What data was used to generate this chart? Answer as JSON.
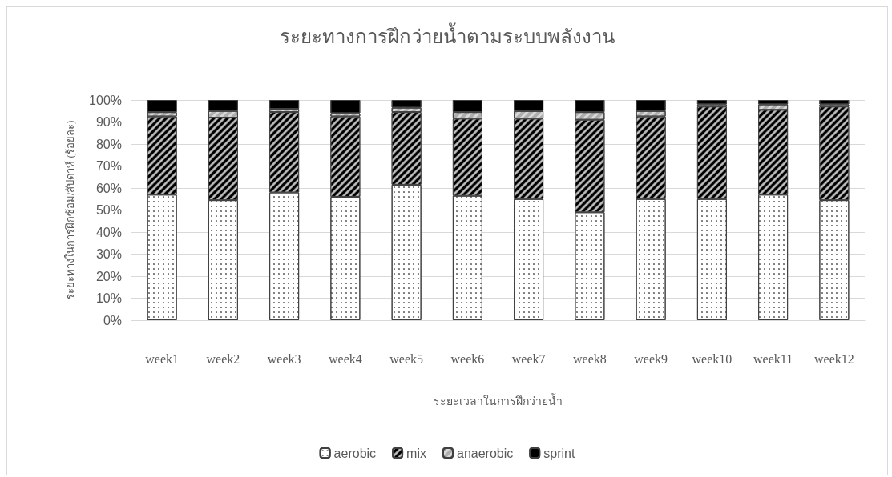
{
  "chart_data": {
    "type": "bar",
    "stacked": true,
    "title": "ระยะทางการฝึกว่ายน้ำตามระบบพลังงาน",
    "xlabel": "ระยะเวลาในการฝึกว่ายน้ำ",
    "ylabel": "ระยะทางในการฝึกซ้อม/สัปดาห์ (ร้อยละ)",
    "categories": [
      "week1",
      "week2",
      "week3",
      "week4",
      "week5",
      "week6",
      "week7",
      "week8",
      "week9",
      "week10",
      "week11",
      "week12"
    ],
    "series": [
      {
        "name": "aerobic",
        "color": "#ffffff",
        "values": [
          57,
          54.5,
          58,
          56,
          61.5,
          56.5,
          55,
          49,
          55,
          55,
          57,
          54.5
        ]
      },
      {
        "name": "mix",
        "color": "#000000",
        "values": [
          35.5,
          37.5,
          36.5,
          36.5,
          33,
          35,
          36.5,
          42,
          37.5,
          42,
          38.5,
          42.5
        ]
      },
      {
        "name": "anaerobic",
        "color": "#d9d9d9",
        "values": [
          2,
          3,
          1.5,
          1.5,
          2,
          3,
          3.5,
          3.5,
          2.5,
          1,
          2.5,
          1
        ]
      },
      {
        "name": "sprint",
        "color": "#000000",
        "values": [
          5.5,
          5,
          4,
          6,
          3.5,
          5.5,
          5,
          5.5,
          5,
          2,
          2,
          2
        ]
      }
    ],
    "ylim": [
      0,
      100
    ],
    "yticks": [
      {
        "value": 0,
        "label": "0%"
      },
      {
        "value": 10,
        "label": "10%"
      },
      {
        "value": 20,
        "label": "20%"
      },
      {
        "value": 30,
        "label": "30%"
      },
      {
        "value": 40,
        "label": "40%"
      },
      {
        "value": 50,
        "label": "50%"
      },
      {
        "value": 60,
        "label": "60%"
      },
      {
        "value": 70,
        "label": "70%"
      },
      {
        "value": 80,
        "label": "80%"
      },
      {
        "value": 90,
        "label": "90%"
      },
      {
        "value": 100,
        "label": "100%"
      }
    ],
    "grid": "y",
    "legend": "bottom"
  }
}
